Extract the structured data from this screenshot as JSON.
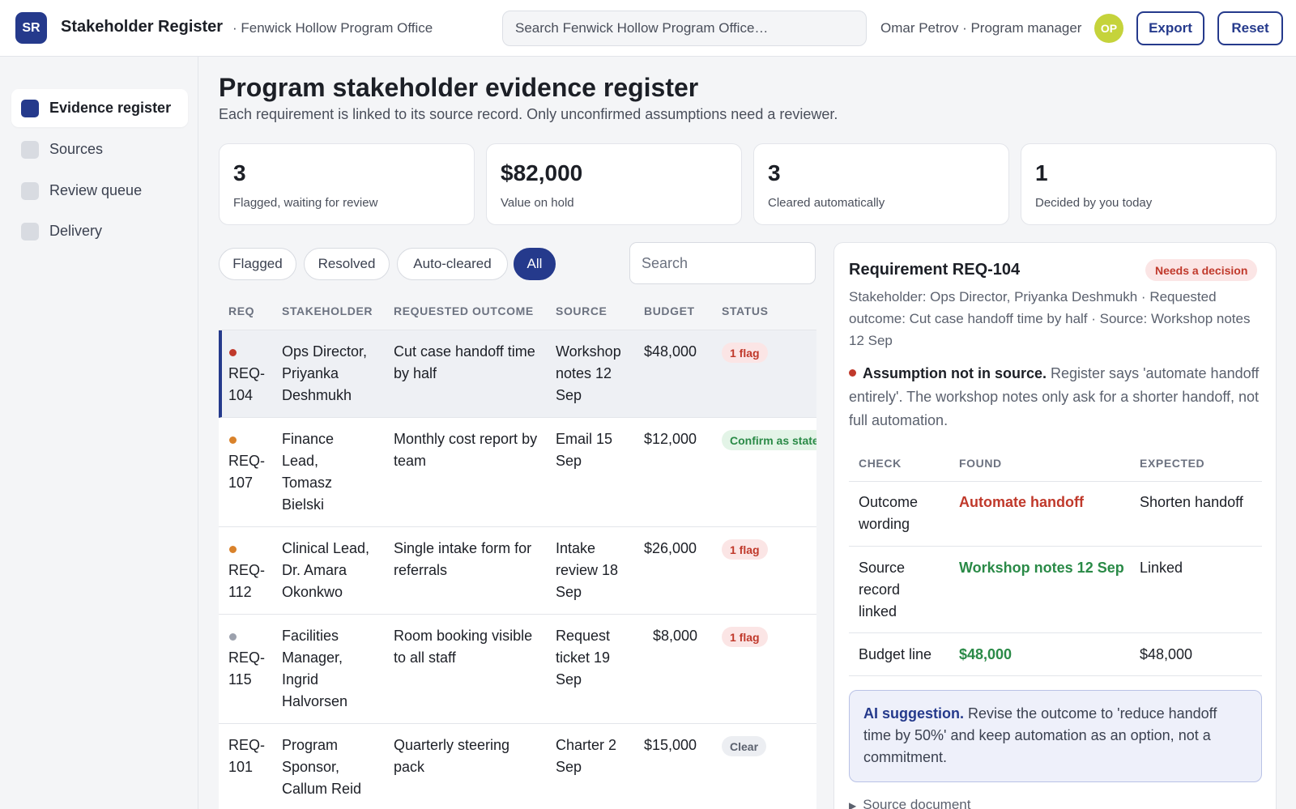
{
  "header": {
    "logo": "SR",
    "app_title": "Stakeholder Register",
    "org": "· Fenwick Hollow Program Office",
    "search_placeholder": "Search Fenwick Hollow Program Office…",
    "user": "Omar Petrov · Program manager",
    "avatar": "OP",
    "export_label": "Export",
    "reset_label": "Reset"
  },
  "sidebar": {
    "items": [
      {
        "label": "Evidence register",
        "active": true
      },
      {
        "label": "Sources",
        "active": false
      },
      {
        "label": "Review queue",
        "active": false
      },
      {
        "label": "Delivery",
        "active": false
      }
    ]
  },
  "main": {
    "title": "Program stakeholder evidence register",
    "subtitle": "Each requirement is linked to its source record. Only unconfirmed assumptions need a reviewer."
  },
  "kpis": [
    {
      "value": "3",
      "label": "Flagged, waiting for review"
    },
    {
      "value": "$82,000",
      "label": "Value on hold"
    },
    {
      "value": "3",
      "label": "Cleared automatically"
    },
    {
      "value": "1",
      "label": "Decided by you today"
    }
  ],
  "filters": {
    "chips": [
      "Flagged",
      "Resolved",
      "Auto-cleared",
      "All"
    ],
    "active": "All",
    "search_placeholder": "Search"
  },
  "table": {
    "columns": [
      "REQ",
      "STAKEHOLDER",
      "REQUESTED OUTCOME",
      "SOURCE",
      "BUDGET",
      "STATUS"
    ],
    "rows": [
      {
        "req": "REQ-\n104",
        "stakeholder": "Ops Director, Priyanka Deshmukh",
        "outcome": "Cut case handoff time by half",
        "source": "Workshop notes 12 Sep",
        "budget": "$48,000",
        "status": "1 flag",
        "status_kind": "flag",
        "dot_color": "#c0392b",
        "selected": true
      },
      {
        "req": "REQ-\n107",
        "stakeholder": "Finance Lead, Tomasz Bielski",
        "outcome": "Monthly cost report by team",
        "source": "Email 15 Sep",
        "budget": "$12,000",
        "status": "Confirm as stated",
        "status_kind": "confirm",
        "dot_color": "#d9822b",
        "selected": false
      },
      {
        "req": "REQ-\n112",
        "stakeholder": "Clinical Lead, Dr. Amara Okonkwo",
        "outcome": "Single intake form for referrals",
        "source": "Intake review 18 Sep",
        "budget": "$26,000",
        "status": "1 flag",
        "status_kind": "flag",
        "dot_color": "#d9822b",
        "selected": false
      },
      {
        "req": "REQ-\n115",
        "stakeholder": "Facilities Manager, Ingrid Halvorsen",
        "outcome": "Room booking visible to all staff",
        "source": "Request ticket 19 Sep",
        "budget": "$8,000",
        "status": "1 flag",
        "status_kind": "flag",
        "dot_color": "#9ca1ad",
        "selected": false
      },
      {
        "req": "REQ-\n101",
        "stakeholder": "Program Sponsor, Callum Reid",
        "outcome": "Quarterly steering pack",
        "source": "Charter 2 Sep",
        "budget": "$15,000",
        "status": "Clear",
        "status_kind": "clear",
        "dot_color": "",
        "selected": false
      }
    ]
  },
  "detail": {
    "title": "Requirement REQ-104",
    "badge": "Needs a decision",
    "meta": "Stakeholder: Ops Director, Priyanka Deshmukh · Requested outcome: Cut case handoff time by half · Source: Workshop notes 12 Sep",
    "issue_title": "Assumption not in source.",
    "issue_text": "Register says 'automate handoff entirely'. The workshop notes only ask for a shorter handoff, not full automation.",
    "check_columns": [
      "CHECK",
      "FOUND",
      "EXPECTED"
    ],
    "checks": [
      {
        "check": "Outcome wording",
        "found": "Automate handoff",
        "found_kind": "bad",
        "expected": "Shorten handoff"
      },
      {
        "check": "Source record linked",
        "found": "Workshop notes 12 Sep",
        "found_kind": "good",
        "expected": "Linked"
      },
      {
        "check": "Budget line",
        "found": "$48,000",
        "found_kind": "good",
        "expected": "$48,000"
      }
    ],
    "ai_label": "AI suggestion.",
    "ai_text": "Revise the outcome to 'reduce handoff time by 50%' and keep automation as an option, not a commitment.",
    "source_doc": "Source document"
  },
  "colors": {
    "accent": "#253a8c",
    "flag": "#c0392b",
    "ok": "#2a8a47"
  }
}
